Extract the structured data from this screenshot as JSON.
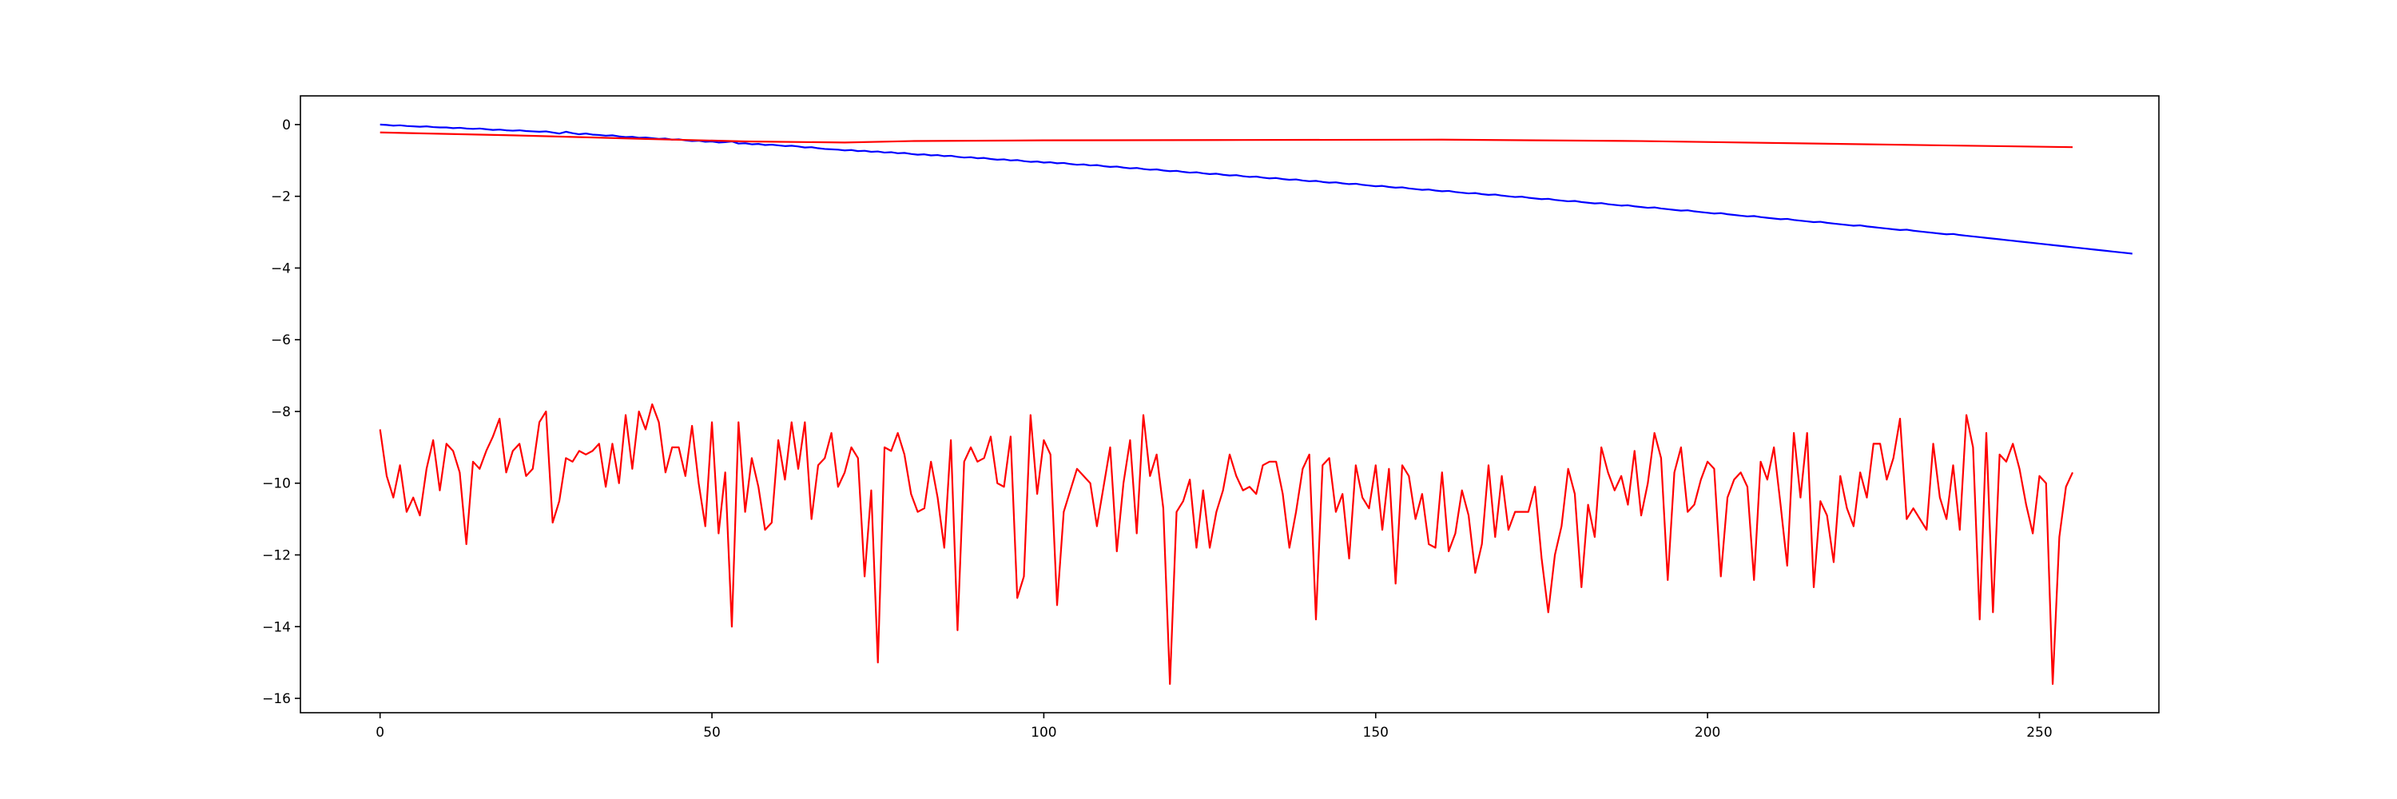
{
  "chart_data": {
    "type": "line",
    "title": "",
    "xlabel": "",
    "ylabel": "",
    "xlim": [
      -12,
      268
    ],
    "ylim": [
      -16.4,
      0.8
    ],
    "grid": false,
    "legend": "none",
    "x_ticks": [
      0,
      50,
      100,
      150,
      200,
      250
    ],
    "y_ticks": [
      0,
      -2,
      -4,
      -6,
      -8,
      -10,
      -12,
      -14,
      -16
    ],
    "x_tick_labels": [
      "0",
      "50",
      "100",
      "150",
      "200",
      "250"
    ],
    "y_tick_labels": [
      "0",
      "−2",
      "−4",
      "−6",
      "−8",
      "−10",
      "−12",
      "−14",
      "−16"
    ],
    "series": [
      {
        "color": "#0000ff",
        "x_start": 0,
        "x_step": 1,
        "values": [
          0.0,
          -0.01,
          -0.03,
          -0.02,
          -0.04,
          -0.05,
          -0.06,
          -0.05,
          -0.07,
          -0.08,
          -0.08,
          -0.1,
          -0.09,
          -0.11,
          -0.12,
          -0.11,
          -0.13,
          -0.15,
          -0.14,
          -0.16,
          -0.17,
          -0.16,
          -0.18,
          -0.19,
          -0.2,
          -0.19,
          -0.22,
          -0.25,
          -0.2,
          -0.24,
          -0.27,
          -0.25,
          -0.28,
          -0.29,
          -0.31,
          -0.3,
          -0.33,
          -0.35,
          -0.34,
          -0.37,
          -0.36,
          -0.38,
          -0.4,
          -0.39,
          -0.42,
          -0.41,
          -0.44,
          -0.46,
          -0.45,
          -0.48,
          -0.47,
          -0.5,
          -0.49,
          -0.47,
          -0.53,
          -0.52,
          -0.55,
          -0.54,
          -0.57,
          -0.56,
          -0.58,
          -0.6,
          -0.59,
          -0.61,
          -0.64,
          -0.63,
          -0.66,
          -0.68,
          -0.69,
          -0.7,
          -0.72,
          -0.71,
          -0.74,
          -0.73,
          -0.76,
          -0.75,
          -0.78,
          -0.77,
          -0.8,
          -0.79,
          -0.82,
          -0.84,
          -0.83,
          -0.86,
          -0.85,
          -0.88,
          -0.87,
          -0.9,
          -0.92,
          -0.91,
          -0.94,
          -0.93,
          -0.96,
          -0.98,
          -0.97,
          -1.0,
          -0.99,
          -1.02,
          -1.04,
          -1.03,
          -1.06,
          -1.05,
          -1.08,
          -1.07,
          -1.1,
          -1.12,
          -1.11,
          -1.14,
          -1.13,
          -1.16,
          -1.18,
          -1.17,
          -1.2,
          -1.22,
          -1.21,
          -1.24,
          -1.26,
          -1.25,
          -1.28,
          -1.3,
          -1.29,
          -1.32,
          -1.34,
          -1.33,
          -1.36,
          -1.38,
          -1.37,
          -1.4,
          -1.42,
          -1.41,
          -1.44,
          -1.46,
          -1.45,
          -1.48,
          -1.5,
          -1.49,
          -1.52,
          -1.54,
          -1.53,
          -1.56,
          -1.58,
          -1.57,
          -1.6,
          -1.62,
          -1.61,
          -1.64,
          -1.66,
          -1.65,
          -1.68,
          -1.7,
          -1.72,
          -1.71,
          -1.74,
          -1.76,
          -1.75,
          -1.78,
          -1.8,
          -1.82,
          -1.81,
          -1.84,
          -1.86,
          -1.85,
          -1.88,
          -1.9,
          -1.92,
          -1.91,
          -1.94,
          -1.96,
          -1.95,
          -1.98,
          -2.0,
          -2.02,
          -2.01,
          -2.04,
          -2.06,
          -2.08,
          -2.07,
          -2.1,
          -2.12,
          -2.14,
          -2.13,
          -2.16,
          -2.18,
          -2.2,
          -2.19,
          -2.22,
          -2.24,
          -2.26,
          -2.25,
          -2.28,
          -2.3,
          -2.32,
          -2.31,
          -2.34,
          -2.36,
          -2.38,
          -2.4,
          -2.39,
          -2.42,
          -2.44,
          -2.46,
          -2.48,
          -2.47,
          -2.5,
          -2.52,
          -2.54,
          -2.56,
          -2.55,
          -2.58,
          -2.6,
          -2.62,
          -2.64,
          -2.63,
          -2.66,
          -2.68,
          -2.7,
          -2.72,
          -2.71,
          -2.74,
          -2.76,
          -2.78,
          -2.8,
          -2.82,
          -2.81,
          -2.84,
          -2.86,
          -2.88,
          -2.9,
          -2.92,
          -2.94,
          -2.93,
          -2.96,
          -2.98,
          -3.0,
          -3.02,
          -3.04,
          -3.06,
          -3.05,
          -3.08,
          -3.1,
          -3.12,
          -3.14,
          -3.16,
          -3.18,
          -3.2,
          -3.22,
          -3.24,
          -3.26,
          -3.28,
          -3.3,
          -3.32,
          -3.34,
          -3.36,
          -3.38,
          -3.4,
          -3.42,
          -3.44,
          -3.46,
          -3.48,
          -3.5,
          -3.52,
          -3.54,
          -3.56,
          -3.58,
          -3.6
        ]
      },
      {
        "color": "#ff0000",
        "x": [
          0,
          20,
          40,
          55,
          70,
          80,
          100,
          130,
          160,
          190,
          220,
          255
        ],
        "y": [
          -0.22,
          -0.3,
          -0.4,
          -0.47,
          -0.5,
          -0.46,
          -0.44,
          -0.43,
          -0.42,
          -0.46,
          -0.54,
          -0.63
        ]
      },
      {
        "color": "#ff0000",
        "x_start": 0,
        "x_step": 1,
        "values": [
          -8.5,
          -9.8,
          -10.4,
          -9.5,
          -10.8,
          -10.4,
          -10.9,
          -9.6,
          -8.8,
          -10.2,
          -8.9,
          -9.1,
          -9.7,
          -11.7,
          -9.4,
          -9.6,
          -9.1,
          -8.7,
          -8.2,
          -9.7,
          -9.1,
          -8.9,
          -9.8,
          -9.6,
          -8.3,
          -8.0,
          -11.1,
          -10.5,
          -9.3,
          -9.4,
          -9.1,
          -9.2,
          -9.1,
          -8.9,
          -10.1,
          -8.9,
          -10.0,
          -8.1,
          -9.6,
          -8.0,
          -8.5,
          -7.8,
          -8.3,
          -9.7,
          -9.0,
          -9.0,
          -9.8,
          -8.4,
          -10.0,
          -11.2,
          -8.3,
          -11.4,
          -9.7,
          -14.0,
          -8.3,
          -10.8,
          -9.3,
          -10.1,
          -11.3,
          -11.1,
          -8.8,
          -9.9,
          -8.3,
          -9.6,
          -8.3,
          -11.0,
          -9.5,
          -9.3,
          -8.6,
          -10.1,
          -9.7,
          -9.0,
          -9.3,
          -12.6,
          -10.2,
          -15.0,
          -9.0,
          -9.1,
          -8.6,
          -9.2,
          -10.3,
          -10.8,
          -10.7,
          -9.4,
          -10.4,
          -11.8,
          -8.8,
          -14.1,
          -9.4,
          -9.0,
          -9.4,
          -9.3,
          -8.7,
          -10.0,
          -10.1,
          -8.7,
          -13.2,
          -12.6,
          -8.1,
          -10.3,
          -8.8,
          -9.2,
          -13.4,
          -10.8,
          -10.2,
          -9.6,
          -9.8,
          -10.0,
          -11.2,
          -10.1,
          -9.0,
          -11.9,
          -10.0,
          -8.8,
          -11.4,
          -8.1,
          -9.8,
          -9.2,
          -10.7,
          -15.6,
          -10.8,
          -10.5,
          -9.9,
          -11.8,
          -10.2,
          -11.8,
          -10.8,
          -10.2,
          -9.2,
          -9.8,
          -10.2,
          -10.1,
          -10.3,
          -9.5,
          -9.4,
          -9.4,
          -10.3,
          -11.8,
          -10.8,
          -9.6,
          -9.2,
          -13.8,
          -9.5,
          -9.3,
          -10.8,
          -10.3,
          -12.1,
          -9.5,
          -10.4,
          -10.7,
          -9.5,
          -11.3,
          -9.6,
          -12.8,
          -9.5,
          -9.8,
          -11.0,
          -10.3,
          -11.7,
          -11.8,
          -9.7,
          -11.9,
          -11.4,
          -10.2,
          -10.9,
          -12.5,
          -11.7,
          -9.5,
          -11.5,
          -9.8,
          -11.3,
          -10.8,
          -10.8,
          -10.8,
          -10.1,
          -12.1,
          -13.6,
          -12.0,
          -11.2,
          -9.6,
          -10.3,
          -12.9,
          -10.6,
          -11.5,
          -9.0,
          -9.7,
          -10.2,
          -9.8,
          -10.6,
          -9.1,
          -10.9,
          -10.0,
          -8.6,
          -9.3,
          -12.7,
          -9.7,
          -9.0,
          -10.8,
          -10.6,
          -9.9,
          -9.4,
          -9.6,
          -12.6,
          -10.4,
          -9.9,
          -9.7,
          -10.1,
          -12.7,
          -9.4,
          -9.9,
          -9.0,
          -10.6,
          -12.3,
          -8.6,
          -10.4,
          -8.6,
          -12.9,
          -10.5,
          -10.9,
          -12.2,
          -9.8,
          -10.7,
          -11.2,
          -9.7,
          -10.4,
          -8.9,
          -8.9,
          -9.9,
          -9.3,
          -8.2,
          -11.0,
          -10.7,
          -11.0,
          -11.3,
          -8.9,
          -10.4,
          -11.0,
          -9.5,
          -11.3,
          -8.1,
          -9.0,
          -13.8,
          -8.6,
          -13.6,
          -9.2,
          -9.4,
          -8.9,
          -9.6,
          -10.6,
          -11.4,
          -9.8,
          -10.0,
          -15.6,
          -11.5,
          -10.1,
          -9.7
        ]
      }
    ]
  }
}
